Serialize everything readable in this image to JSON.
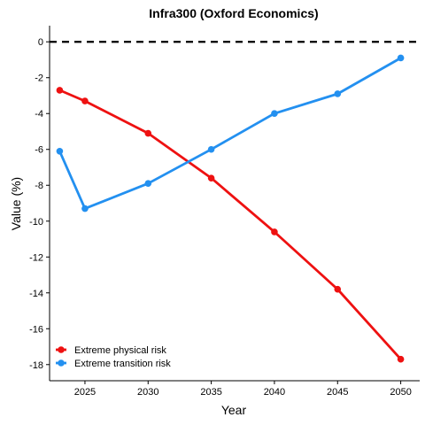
{
  "chart_data": {
    "type": "line",
    "title": "Infra300 (Oxford Economics)",
    "xlabel": "Year",
    "ylabel": "Value (%)",
    "xlim": [
      2022.2,
      2051.5
    ],
    "ylim": [
      -18.9,
      0.9
    ],
    "xticks": [
      2025,
      2030,
      2035,
      2040,
      2045,
      2050
    ],
    "yticks": [
      0,
      -2,
      -4,
      -6,
      -8,
      -10,
      -12,
      -14,
      -16,
      -18
    ],
    "reference_line": {
      "y": 0,
      "style": "dashed"
    },
    "grid": false,
    "legend_position": "bottom-left",
    "series": [
      {
        "name": "Extreme physical risk",
        "color": "#ee1111",
        "x": [
          2023,
          2025,
          2030,
          2035,
          2040,
          2045,
          2050
        ],
        "y": [
          -2.7,
          -3.3,
          -5.1,
          -7.6,
          -10.6,
          -13.8,
          -17.7
        ]
      },
      {
        "name": "Extreme transition risk",
        "color": "#2390f0",
        "x": [
          2023,
          2025,
          2030,
          2035,
          2040,
          2045,
          2050
        ],
        "y": [
          -6.1,
          -9.3,
          -7.9,
          -6.0,
          -4.0,
          -2.9,
          -0.9
        ]
      }
    ]
  }
}
